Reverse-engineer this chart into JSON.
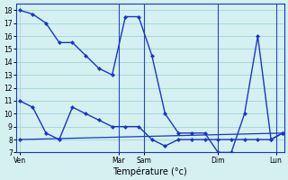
{
  "xlabel": "Température (°c)",
  "background_color": "#d4f0f0",
  "grid_color": "#a8d8d8",
  "line_color": "#1a35cc",
  "ylim": [
    7,
    18.5
  ],
  "yticks": [
    7,
    8,
    9,
    10,
    11,
    12,
    13,
    14,
    15,
    16,
    17,
    18
  ],
  "xlim": [
    -0.2,
    16.0
  ],
  "day_tick_positions": [
    0.0,
    6.0,
    7.5,
    12.0,
    15.5
  ],
  "day_tick_labels": [
    "Ven",
    "Mar",
    "Sam",
    "Dim",
    "Lun"
  ],
  "vline_positions": [
    6.0,
    7.5,
    12.0,
    15.5
  ],
  "series": [
    {
      "x": [
        0.0,
        0.8,
        1.6,
        2.4,
        3.2,
        4.0,
        4.8,
        5.6,
        6.4,
        7.2,
        8.0,
        8.8,
        9.6,
        10.4,
        11.2,
        12.0,
        12.8,
        13.6,
        14.4,
        15.2,
        15.9
      ],
      "y": [
        18,
        17.7,
        17.0,
        15.5,
        15.5,
        14.5,
        13.5,
        13.0,
        17.5,
        17.5,
        14.5,
        10.0,
        8.5,
        8.5,
        8.5,
        7.0,
        7.0,
        10.0,
        16.0,
        8.0,
        8.5
      ],
      "style": "solid",
      "lw": 1.0
    },
    {
      "x": [
        0.0,
        0.8,
        1.6,
        2.4,
        3.2,
        4.0,
        4.8,
        5.6,
        6.4,
        7.2,
        8.0,
        8.8,
        9.6,
        10.4,
        11.2,
        12.0,
        12.8,
        13.6,
        14.4,
        15.2,
        15.9
      ],
      "y": [
        11.0,
        10.5,
        8.5,
        8.0,
        10.5,
        10.0,
        9.5,
        9.0,
        9.0,
        9.0,
        8.0,
        7.5,
        8.0,
        8.0,
        8.0,
        8.0,
        8.0,
        8.0,
        8.0,
        8.0,
        8.5
      ],
      "style": "solid",
      "lw": 1.0
    },
    {
      "x": [
        0.0,
        15.9
      ],
      "y": [
        8.0,
        8.5
      ],
      "style": "solid",
      "lw": 0.9
    }
  ]
}
